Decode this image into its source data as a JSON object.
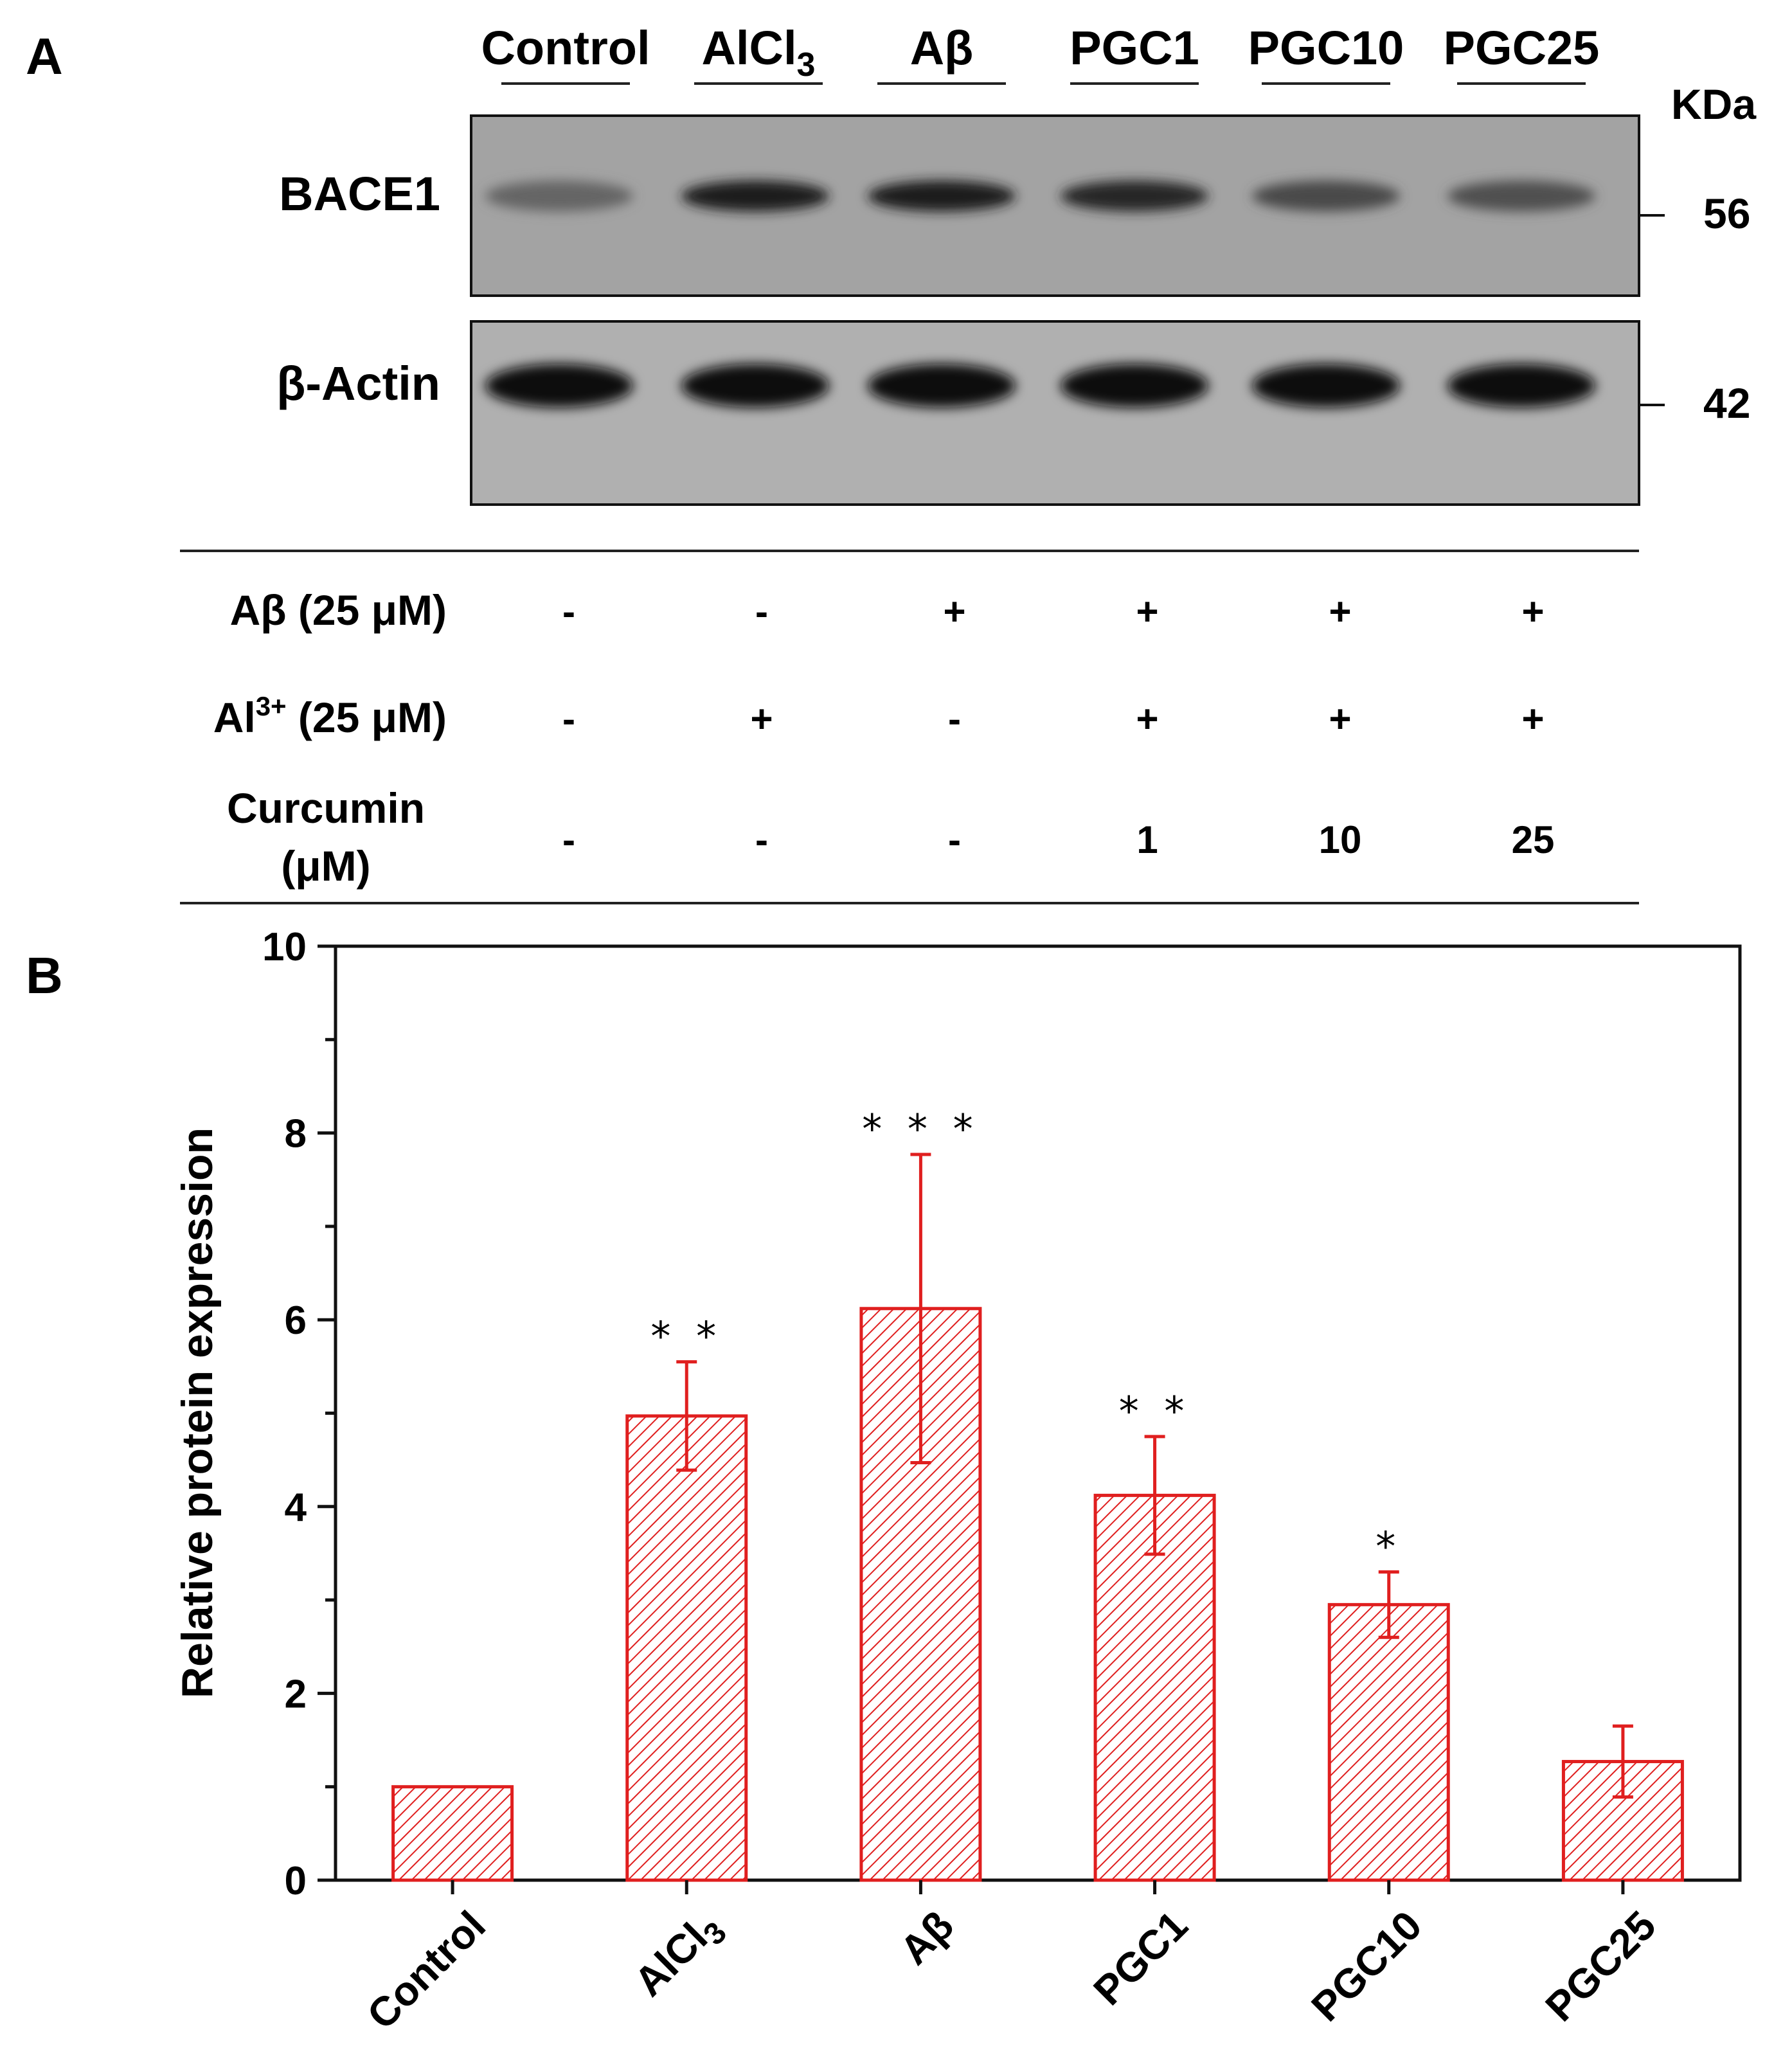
{
  "panels": {
    "a": "A",
    "b": "B"
  },
  "blot": {
    "lanes": [
      "Control",
      "AlCl",
      "Aβ",
      "PGC1",
      "PGC10",
      "PGC25"
    ],
    "alcl_subscript": "3",
    "kda_label": "KDa",
    "proteins": [
      {
        "name": "BACE1",
        "kda": "56",
        "intensities": [
          0.35,
          0.85,
          0.88,
          0.8,
          0.55,
          0.5
        ]
      },
      {
        "name": "β-Actin",
        "kda": "42",
        "intensities": [
          1.0,
          0.95,
          0.98,
          0.98,
          1.0,
          0.98
        ]
      }
    ]
  },
  "conditions": {
    "rows": [
      {
        "label": "Aβ (25 μM)",
        "values": [
          "-",
          "-",
          "+",
          "+",
          "+",
          "+"
        ]
      },
      {
        "label": "Al",
        "label_sup": "3+",
        "label_rest": " (25 μM)",
        "values": [
          "-",
          "+",
          "-",
          "+",
          "+",
          "+"
        ]
      },
      {
        "label": "Curcumin",
        "label_line2": "(μM)",
        "values": [
          "-",
          "-",
          "-",
          "1",
          "10",
          "25"
        ]
      }
    ]
  },
  "chart_data": {
    "type": "bar",
    "categories": [
      "Control",
      "AlCl3",
      "Aβ",
      "PGC1",
      "PGC10",
      "PGC25"
    ],
    "values": [
      1.0,
      4.97,
      6.12,
      4.12,
      2.95,
      1.27
    ],
    "errors": [
      0.0,
      0.58,
      1.65,
      0.63,
      0.35,
      0.38
    ],
    "significance": [
      "",
      "**",
      "***",
      "**",
      "*",
      ""
    ],
    "title": "",
    "xlabel": "",
    "ylabel": "Relative protein expression",
    "ylim": [
      0,
      10
    ],
    "yticks": [
      0,
      2,
      4,
      6,
      8,
      10
    ],
    "bar_color": "#e01f1f",
    "bar_fill": "hatched"
  }
}
